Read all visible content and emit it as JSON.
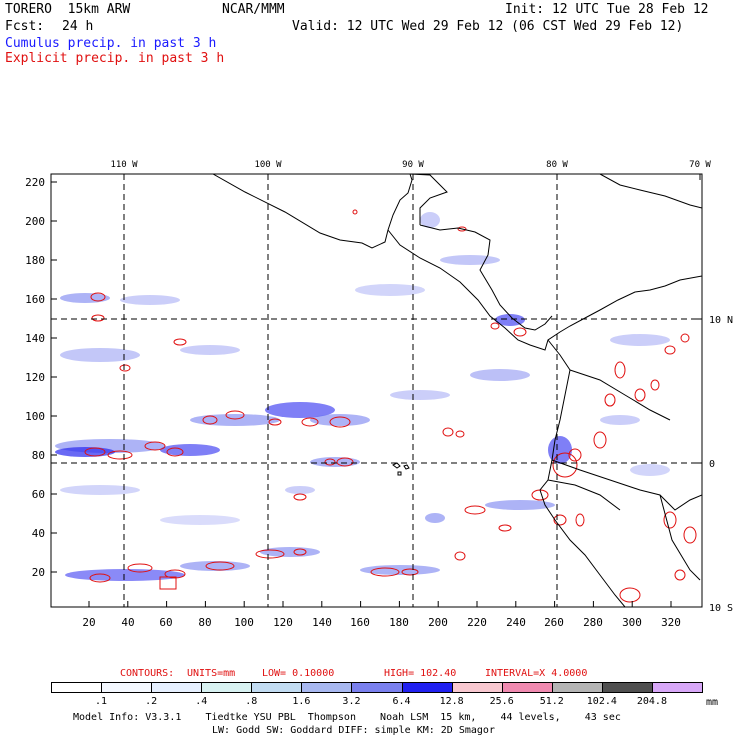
{
  "header": {
    "model_title": "TORERO  15km ARW",
    "org": "NCAR/MMM",
    "init": "Init: 12 UTC Tue 28 Feb 12",
    "fcst_label": "Fcst:",
    "fcst_hours": "24 h",
    "valid": "Valid: 12 UTC Wed 29 Feb 12 (06 CST Wed 29 Feb 12)",
    "legend_cumulus": "Cumulus precip. in past 3 h",
    "legend_explicit": "Explicit precip. in past 3 h"
  },
  "colors": {
    "cumulus_text": "#1a1aff",
    "explicit_text": "#e01010",
    "contour": "#e01010",
    "coast": "#000000"
  },
  "axes": {
    "top_ticks": [
      "110 W",
      "100 W",
      "90 W",
      "80 W",
      "70 W"
    ],
    "left_ticks": [
      "220",
      "200",
      "180",
      "160",
      "140",
      "120",
      "100",
      "80",
      "60",
      "40",
      "20"
    ],
    "bottom_ticks": [
      "20",
      "40",
      "60",
      "80",
      "100",
      "120",
      "140",
      "160",
      "180",
      "200",
      "220",
      "240",
      "260",
      "280",
      "300",
      "320"
    ],
    "right_ticks": [
      "10 N",
      "0",
      "10 S"
    ]
  },
  "contour_info": {
    "label": "CONTOURS:",
    "units": "UNITS=mm",
    "low": "LOW= 0.10000",
    "high": "HIGH= 102.40",
    "interval": "INTERVAL=X 4.0000"
  },
  "colorbar": {
    "unit": "mm",
    "labels": [
      ".1",
      ".2",
      ".4",
      ".8",
      "1.6",
      "3.2",
      "6.4",
      "12.8",
      "25.6",
      "51.2",
      "102.4",
      "204.8"
    ],
    "colors": [
      "#ffffff",
      "#f4f8ff",
      "#e6f0ff",
      "#d8f2f2",
      "#c2dcf2",
      "#a8b8f0",
      "#7a80ee",
      "#2020f0",
      "#f8c8d0",
      "#f08ab0",
      "#b4b4b4",
      "#505050",
      "#d8a8f8"
    ]
  },
  "footer": {
    "line1": "Model Info: V3.3.1    Tiedtke YSU PBL  Thompson    Noah LSM  15 km,    44 levels,    43 sec",
    "line2": "LW: Godd SW: Goddard DIFF: simple KM: 2D Smagor"
  }
}
